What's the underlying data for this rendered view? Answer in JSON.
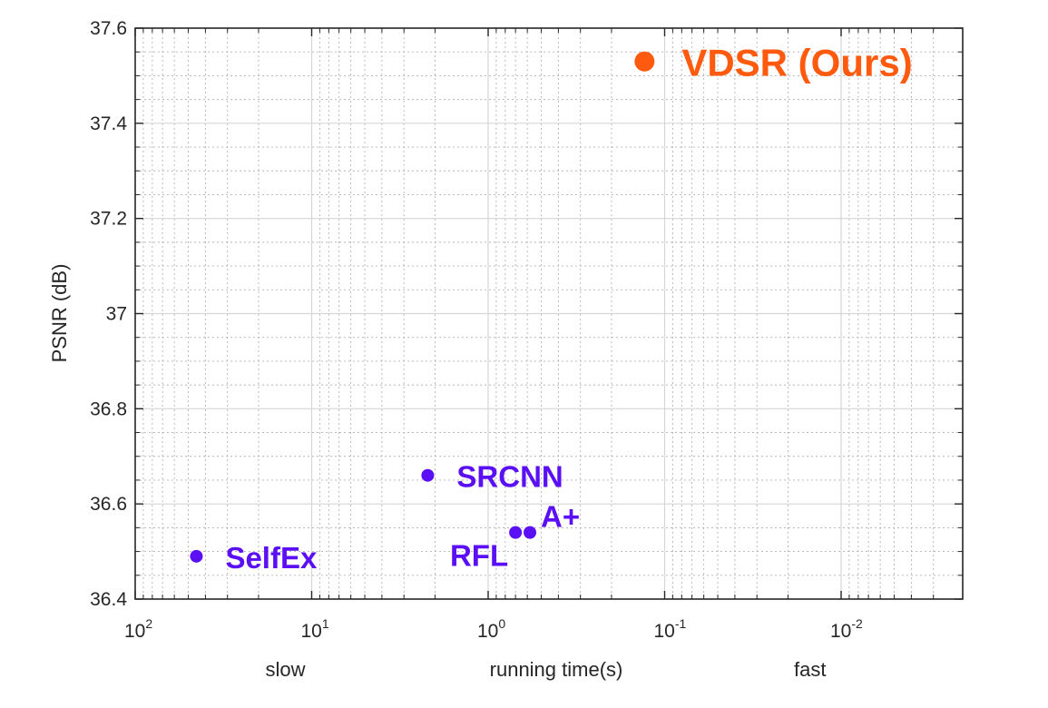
{
  "chart_data": {
    "type": "scatter",
    "xscale": "log",
    "xreversed": true,
    "xlim": [
      100,
      0.002
    ],
    "ylim": [
      36.4,
      37.6
    ],
    "x_ticks": [
      {
        "value": 100,
        "base": "10",
        "exp": "2"
      },
      {
        "value": 10,
        "base": "10",
        "exp": "1"
      },
      {
        "value": 1,
        "base": "10",
        "exp": "0"
      },
      {
        "value": 0.1,
        "base": "10",
        "exp": "-1"
      },
      {
        "value": 0.01,
        "base": "10",
        "exp": "-2"
      }
    ],
    "y_ticks": [
      "36.4",
      "36.6",
      "36.8",
      "37",
      "37.2",
      "37.4",
      "37.6"
    ],
    "ylabel": "PSNR (dB)",
    "xlabel": "running time(s)",
    "x_annotations": [
      {
        "text": "slow",
        "at": 10
      },
      {
        "text": "fast",
        "at": 0.015
      }
    ],
    "grid": true,
    "points": [
      {
        "name": "SelfEx",
        "x": 45,
        "y": 36.49,
        "color": "#5B0FF5",
        "label_pos": "right"
      },
      {
        "name": "SRCNN",
        "x": 2.2,
        "y": 36.66,
        "color": "#5B0FF5",
        "label_pos": "right"
      },
      {
        "name": "RFL",
        "x": 0.7,
        "y": 36.54,
        "color": "#5B0FF5",
        "label_pos": "below-left"
      },
      {
        "name": "A+",
        "x": 0.58,
        "y": 36.54,
        "color": "#5B0FF5",
        "label_pos": "above-right"
      },
      {
        "name": "VDSR (Ours)",
        "x": 0.13,
        "y": 37.53,
        "color": "#FF5A0E",
        "label_pos": "right",
        "highlight": true
      }
    ]
  }
}
